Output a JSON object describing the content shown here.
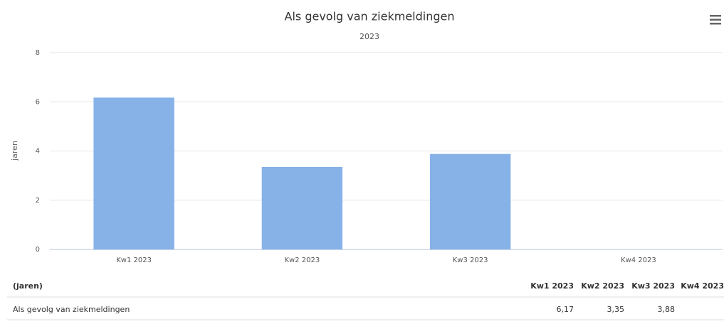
{
  "chart_data": {
    "type": "bar",
    "title": "Als gevolg van ziekmeldingen",
    "subtitle": "2023",
    "y_label": "jaren",
    "categories": [
      "Kw1 2023",
      "Kw2 2023",
      "Kw3 2023",
      "Kw4 2023"
    ],
    "series": [
      {
        "name": "Als gevolg van ziekmeldingen",
        "color": "#86b2e8",
        "values": [
          6.17,
          3.35,
          3.88,
          null
        ],
        "value_labels": [
          "6,17",
          "3,35",
          "3,88",
          null
        ]
      }
    ],
    "ylim": [
      0,
      8
    ],
    "yticks": [
      0,
      2,
      4,
      6,
      8
    ],
    "grid": true,
    "table_header": "(jaren)"
  }
}
